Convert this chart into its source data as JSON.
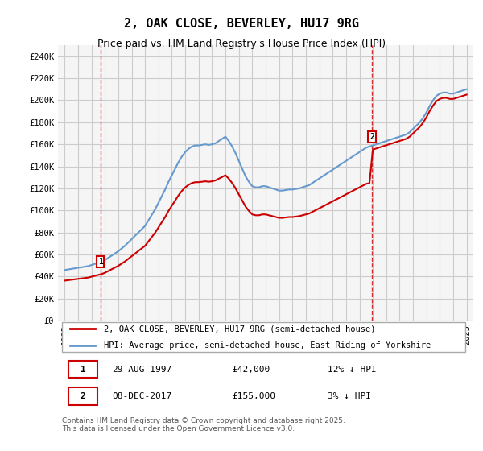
{
  "title": "2, OAK CLOSE, BEVERLEY, HU17 9RG",
  "subtitle": "Price paid vs. HM Land Registry's House Price Index (HPI)",
  "ylabel_ticks": [
    "£0",
    "£20K",
    "£40K",
    "£60K",
    "£80K",
    "£100K",
    "£120K",
    "£140K",
    "£160K",
    "£180K",
    "£200K",
    "£220K",
    "£240K"
  ],
  "ylim": [
    0,
    250000
  ],
  "ytick_values": [
    0,
    20000,
    40000,
    60000,
    80000,
    100000,
    120000,
    140000,
    160000,
    180000,
    200000,
    220000,
    240000
  ],
  "xlim_start": 1994.5,
  "xlim_end": 2025.5,
  "xticks": [
    1995,
    1996,
    1997,
    1998,
    1999,
    2000,
    2001,
    2002,
    2003,
    2004,
    2005,
    2006,
    2007,
    2008,
    2009,
    2010,
    2011,
    2012,
    2013,
    2014,
    2015,
    2016,
    2017,
    2018,
    2019,
    2020,
    2021,
    2022,
    2023,
    2024,
    2025
  ],
  "sale1_x": 1997.66,
  "sale1_y": 42000,
  "sale2_x": 2017.93,
  "sale2_y": 155000,
  "red_line_color": "#cc0000",
  "blue_line_color": "#6699cc",
  "vline_color": "#cc0000",
  "marker_box_color": "#cc0000",
  "grid_color": "#cccccc",
  "bg_color": "#ffffff",
  "plot_bg_color": "#f5f5f5",
  "legend_label1": "2, OAK CLOSE, BEVERLEY, HU17 9RG (semi-detached house)",
  "legend_label2": "HPI: Average price, semi-detached house, East Riding of Yorkshire",
  "table_row1": [
    "1",
    "29-AUG-1997",
    "£42,000",
    "12% ↓ HPI"
  ],
  "table_row2": [
    "2",
    "08-DEC-2017",
    "£155,000",
    "3% ↓ HPI"
  ],
  "copyright_text": "Contains HM Land Registry data © Crown copyright and database right 2025.\nThis data is licensed under the Open Government Licence v3.0.",
  "title_fontsize": 11,
  "subtitle_fontsize": 9,
  "tick_fontsize": 7.5,
  "hpi_data_x": [
    1995,
    1995.25,
    1995.5,
    1995.75,
    1996,
    1996.25,
    1996.5,
    1996.75,
    1997,
    1997.25,
    1997.5,
    1997.75,
    1998,
    1998.25,
    1998.5,
    1998.75,
    1999,
    1999.25,
    1999.5,
    1999.75,
    2000,
    2000.25,
    2000.5,
    2000.75,
    2001,
    2001.25,
    2001.5,
    2001.75,
    2002,
    2002.25,
    2002.5,
    2002.75,
    2003,
    2003.25,
    2003.5,
    2003.75,
    2004,
    2004.25,
    2004.5,
    2004.75,
    2005,
    2005.25,
    2005.5,
    2005.75,
    2006,
    2006.25,
    2006.5,
    2006.75,
    2007,
    2007.25,
    2007.5,
    2007.75,
    2008,
    2008.25,
    2008.5,
    2008.75,
    2009,
    2009.25,
    2009.5,
    2009.75,
    2010,
    2010.25,
    2010.5,
    2010.75,
    2011,
    2011.25,
    2011.5,
    2011.75,
    2012,
    2012.25,
    2012.5,
    2012.75,
    2013,
    2013.25,
    2013.5,
    2013.75,
    2014,
    2014.25,
    2014.5,
    2014.75,
    2015,
    2015.25,
    2015.5,
    2015.75,
    2016,
    2016.25,
    2016.5,
    2016.75,
    2017,
    2017.25,
    2017.5,
    2017.75,
    2018,
    2018.25,
    2018.5,
    2018.75,
    2019,
    2019.25,
    2019.5,
    2019.75,
    2020,
    2020.25,
    2020.5,
    2020.75,
    2021,
    2021.25,
    2021.5,
    2021.75,
    2022,
    2022.25,
    2022.5,
    2022.75,
    2023,
    2023.25,
    2023.5,
    2023.75,
    2024,
    2024.25,
    2024.5,
    2024.75,
    2025
  ],
  "hpi_data_y": [
    46000,
    46500,
    47000,
    47500,
    48000,
    48500,
    49000,
    49500,
    50500,
    51500,
    52500,
    53500,
    55000,
    57000,
    59000,
    61000,
    63000,
    65500,
    68000,
    71000,
    74000,
    77000,
    80000,
    83000,
    86000,
    91000,
    96000,
    101000,
    107000,
    113000,
    119000,
    126000,
    132000,
    138000,
    144000,
    149000,
    153000,
    156000,
    158000,
    159000,
    159000,
    159500,
    160000,
    159500,
    160000,
    161000,
    163000,
    165000,
    167000,
    163000,
    158000,
    152000,
    145000,
    138000,
    131000,
    126000,
    122000,
    121000,
    121000,
    122000,
    122000,
    121000,
    120000,
    119000,
    118000,
    118000,
    118500,
    119000,
    119000,
    119500,
    120000,
    121000,
    122000,
    123000,
    125000,
    127000,
    129000,
    131000,
    133000,
    135000,
    137000,
    139000,
    141000,
    143000,
    145000,
    147000,
    149000,
    151000,
    153000,
    155000,
    157000,
    158000,
    159000,
    160000,
    161000,
    162000,
    163000,
    164000,
    165000,
    166000,
    167000,
    168000,
    169000,
    171000,
    174000,
    177000,
    180000,
    184000,
    189000,
    195000,
    200000,
    204000,
    206000,
    207000,
    207000,
    206000,
    206000,
    207000,
    208000,
    209000,
    210000
  ],
  "property_data_x": [
    1997.66,
    2017.93
  ],
  "property_data_y": [
    42000,
    155000
  ]
}
